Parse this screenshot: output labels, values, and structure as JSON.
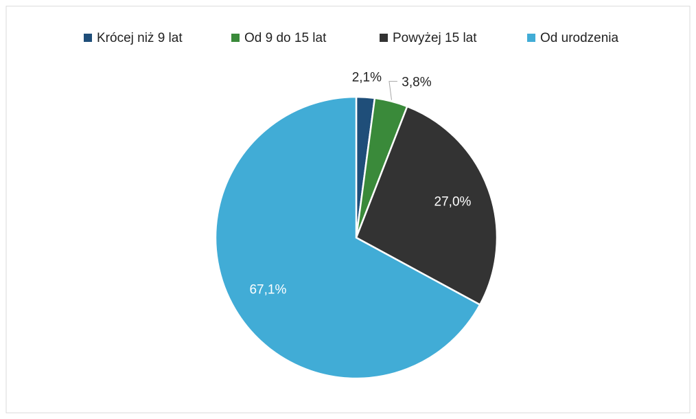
{
  "chart_data": {
    "type": "pie",
    "categories": [
      "Krócej niż 9 lat",
      "Od 9 do 15 lat",
      "Powyżej 15 lat",
      "Od urodzenia"
    ],
    "values": [
      2.1,
      3.8,
      27.0,
      67.1
    ],
    "value_labels": [
      "2,1%",
      "3,8%",
      "27,0%",
      "67,1%"
    ],
    "colors": [
      "#1f4e79",
      "#3a8a3a",
      "#333333",
      "#41acd6"
    ],
    "legend": "top"
  }
}
